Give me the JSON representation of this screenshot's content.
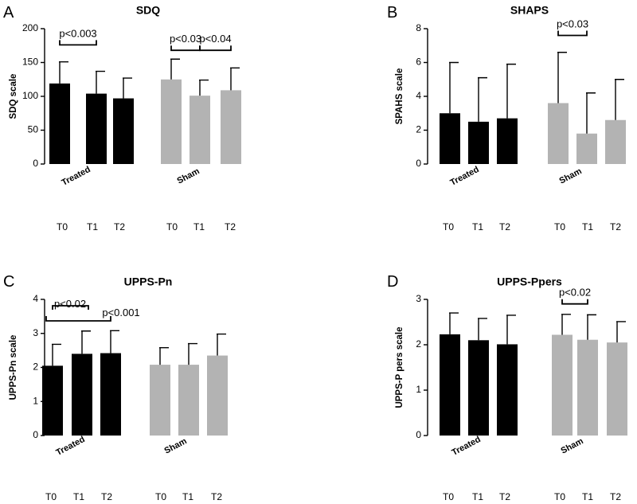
{
  "colors": {
    "treated": "#000000",
    "sham": "#b3b3b3"
  },
  "chart_data": [
    {
      "type": "bar",
      "panel": "A",
      "title": "SDQ",
      "ylabel": "SDQ scale",
      "ylim": [
        0,
        200
      ],
      "yticks": [
        "0",
        "50",
        "100",
        "150",
        "200"
      ],
      "groups": [
        "Treated",
        "Sham"
      ],
      "time_labels": [
        "T0",
        "T1",
        "T2"
      ],
      "series": [
        {
          "name": "Treated",
          "values": [
            119,
            104,
            97
          ],
          "error": [
            32,
            33,
            30
          ]
        },
        {
          "name": "Sham",
          "values": [
            125,
            101,
            109
          ],
          "error": [
            30,
            23,
            33
          ]
        }
      ],
      "annotations": [
        {
          "text": "p<0.003",
          "from": [
            0,
            0
          ],
          "to": [
            0,
            1
          ],
          "y": 176
        },
        {
          "text": "p<0.03",
          "from": [
            1,
            0
          ],
          "to": [
            1,
            1
          ],
          "y": 168
        },
        {
          "text": "p<0.04",
          "from": [
            1,
            1
          ],
          "to": [
            1,
            2
          ],
          "y": 168
        }
      ]
    },
    {
      "type": "bar",
      "panel": "B",
      "title": "SHAPS",
      "ylabel": "SPAHS scale",
      "ylim": [
        0,
        8
      ],
      "yticks": [
        "0",
        "2",
        "4",
        "6",
        "8"
      ],
      "groups": [
        "Treated",
        "Sham"
      ],
      "time_labels": [
        "T0",
        "T1",
        "T2"
      ],
      "series": [
        {
          "name": "Treated",
          "values": [
            3.0,
            2.5,
            2.7
          ],
          "error": [
            3.0,
            2.6,
            3.2
          ]
        },
        {
          "name": "Sham",
          "values": [
            3.6,
            1.8,
            2.6
          ],
          "error": [
            3.0,
            2.4,
            2.4
          ]
        }
      ],
      "annotations": [
        {
          "text": "p<0.03",
          "from": [
            1,
            0
          ],
          "to": [
            1,
            1
          ],
          "y": 7.6
        }
      ]
    },
    {
      "type": "bar",
      "panel": "C",
      "title": "UPPS-Pn",
      "ylabel": "UPPS-Pn scale",
      "ylim": [
        0,
        4
      ],
      "yticks": [
        "0",
        "1",
        "2",
        "3",
        "4"
      ],
      "groups": [
        "Treated",
        "Sham"
      ],
      "time_labels": [
        "T0",
        "T1",
        "T2"
      ],
      "series": [
        {
          "name": "Treated",
          "values": [
            2.05,
            2.4,
            2.42
          ],
          "error": [
            0.63,
            0.67,
            0.66
          ]
        },
        {
          "name": "Sham",
          "values": [
            2.08,
            2.08,
            2.35
          ],
          "error": [
            0.5,
            0.62,
            0.63
          ]
        }
      ],
      "annotations": [
        {
          "text": "p<0.02",
          "from": [
            0,
            0
          ],
          "to": [
            0,
            1
          ],
          "y": 3.55
        },
        {
          "text": "p<0.001",
          "from": [
            0,
            0
          ],
          "to": [
            0,
            2
          ],
          "y": 3.35
        }
      ]
    },
    {
      "type": "bar",
      "panel": "D",
      "title": "UPPS-Ppers",
      "ylabel": "UPPS-P pers scale",
      "ylim": [
        0,
        3
      ],
      "yticks": [
        "0",
        "1",
        "2",
        "3"
      ],
      "groups": [
        "Treated",
        "Sham"
      ],
      "time_labels": [
        "T0",
        "T1",
        "T2"
      ],
      "series": [
        {
          "name": "Treated",
          "values": [
            2.23,
            2.1,
            2.01
          ],
          "error": [
            0.47,
            0.48,
            0.64
          ]
        },
        {
          "name": "Sham",
          "values": [
            2.22,
            2.11,
            2.05
          ],
          "error": [
            0.45,
            0.55,
            0.46
          ]
        }
      ],
      "annotations": [
        {
          "text": "p<0.02",
          "from": [
            1,
            0
          ],
          "to": [
            1,
            1
          ],
          "y": 2.9
        }
      ]
    }
  ]
}
